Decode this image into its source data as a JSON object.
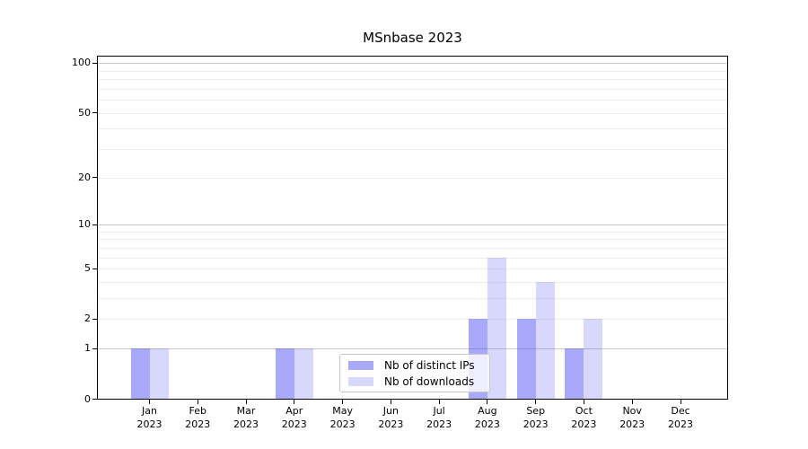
{
  "figure": {
    "background": "#ffffff"
  },
  "chart_data": {
    "type": "bar",
    "title": "MSnbase 2023",
    "year": "2023",
    "categories": [
      "Jan",
      "Feb",
      "Mar",
      "Apr",
      "May",
      "Jun",
      "Jul",
      "Aug",
      "Sep",
      "Oct",
      "Nov",
      "Dec"
    ],
    "series": [
      {
        "name": "Nb of distinct IPs",
        "base_color": "#4646f2",
        "alpha": 0.465,
        "hex_on_white": "#a9a9f9",
        "values": [
          1,
          0,
          0,
          1,
          0,
          0,
          0,
          2,
          2,
          1,
          0,
          0
        ]
      },
      {
        "name": "Nb of downloads",
        "base_color": "#4646f2",
        "alpha": 0.21,
        "hex_on_white": "#d8d8fb",
        "values": [
          1,
          0,
          0,
          1,
          0,
          0,
          0,
          6,
          4,
          2,
          0,
          0
        ]
      }
    ],
    "yticks": [
      0,
      1,
      2,
      5,
      10,
      20,
      50,
      100
    ],
    "y_scale": "log10(1+x)",
    "grid": {
      "minor_values": [
        2,
        3,
        4,
        5,
        6,
        7,
        8,
        9,
        20,
        30,
        40,
        50,
        60,
        70,
        80,
        90
      ],
      "major_values": [
        1,
        10,
        100
      ],
      "minor_color": "#ededed",
      "major_color": "#c9c9c9"
    },
    "legend": {
      "position": "lower center",
      "border_color": "#c7c7c7"
    }
  }
}
